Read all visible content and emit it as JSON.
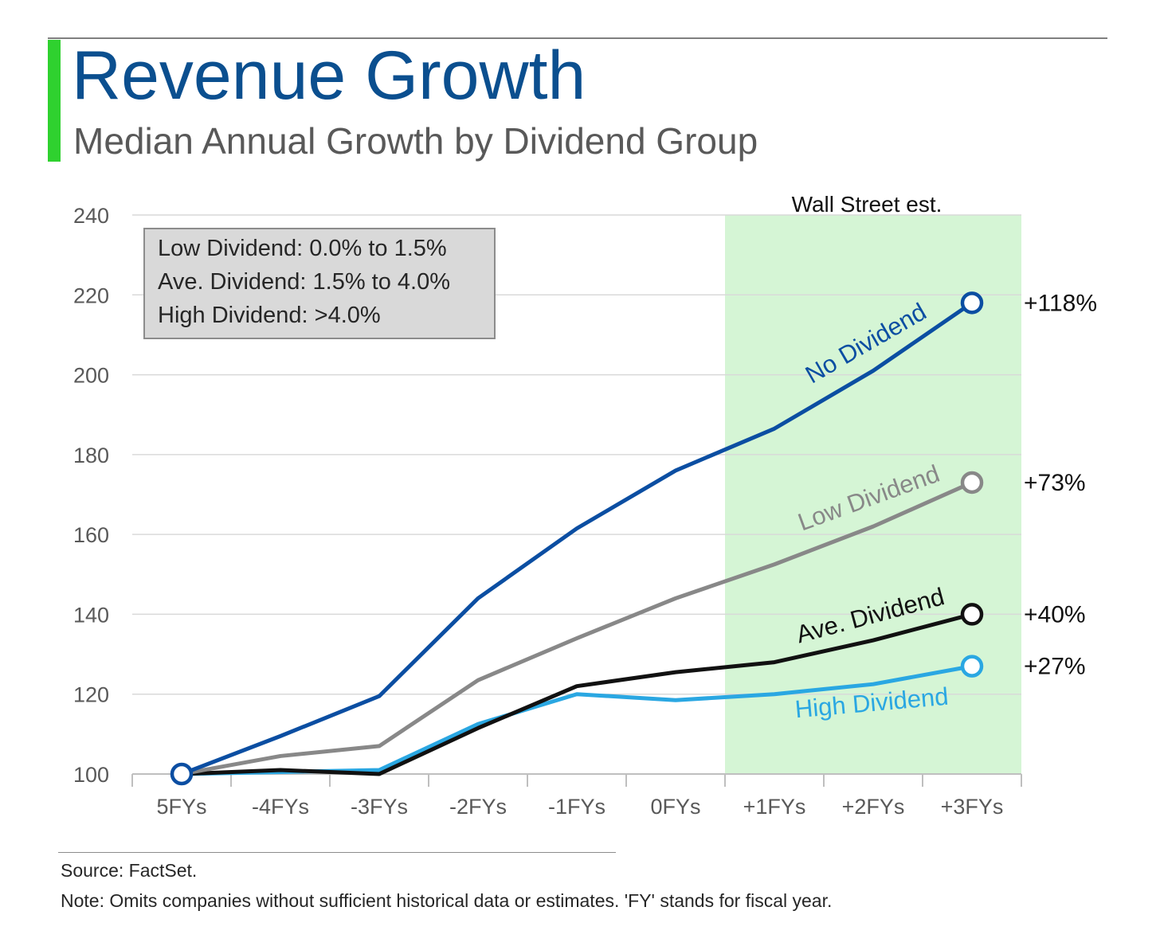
{
  "header": {
    "title": "Revenue Growth",
    "subtitle": "Median Annual Growth by Dividend Group"
  },
  "legend_box": {
    "lines": [
      "Low Dividend: 0.0% to 1.5%",
      "Ave. Dividend: 1.5% to 4.0%",
      "High Dividend: >4.0%"
    ]
  },
  "estimate_region": {
    "label": "Wall Street est.",
    "start_category": "0FYs",
    "end_category": "+3FYs",
    "color": "#d5f5d5"
  },
  "chart_data": {
    "type": "line",
    "categories": [
      "5FYs",
      "-4FYs",
      "-3FYs",
      "-2FYs",
      "-1FYs",
      "0FYs",
      "+1FYs",
      "+2FYs",
      "+3FYs"
    ],
    "ylim": [
      100,
      240
    ],
    "yticks": [
      100,
      120,
      140,
      160,
      180,
      200,
      220,
      240
    ],
    "grid": true,
    "series": [
      {
        "name": "No Dividend",
        "color": "#0b4ea2",
        "values": [
          100,
          109.5,
          119.5,
          144,
          161.5,
          176,
          186.5,
          201,
          218
        ],
        "end_label": "+118%"
      },
      {
        "name": "Low Dividend",
        "color": "#888888",
        "values": [
          100,
          104.5,
          107,
          123.5,
          134,
          144,
          152.5,
          162,
          173
        ],
        "end_label": "+73%"
      },
      {
        "name": "Ave. Dividend",
        "color": "#111111",
        "values": [
          100,
          101,
          100,
          111.5,
          122,
          125.5,
          128,
          133.5,
          140
        ],
        "end_label": "+40%"
      },
      {
        "name": "High Dividend",
        "color": "#2aa7e2",
        "values": [
          100,
          100.5,
          101,
          112.5,
          120,
          118.5,
          120,
          122.5,
          127
        ],
        "end_label": "+27%"
      }
    ]
  },
  "footer": {
    "source": "Source: FactSet.",
    "note": "Note: Omits companies without sufficient historical data or estimates. 'FY' stands for fiscal year."
  }
}
